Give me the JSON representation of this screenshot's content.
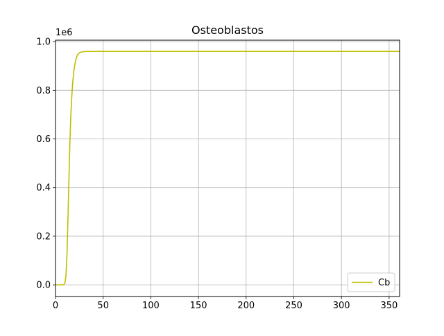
{
  "chart_data": {
    "type": "line",
    "title": "Osteoblastos",
    "xlabel": "",
    "ylabel": "",
    "y_offset_label": "1e6",
    "xlim": [
      0,
      361
    ],
    "ylim": [
      -0.048,
      1.006
    ],
    "x_ticks": [
      0,
      50,
      100,
      150,
      200,
      250,
      300,
      350
    ],
    "x_tick_labels": [
      "0",
      "50",
      "100",
      "150",
      "200",
      "250",
      "300",
      "350"
    ],
    "y_ticks": [
      0.0,
      0.2,
      0.4,
      0.6,
      0.8,
      1.0
    ],
    "y_tick_labels": [
      "0.0",
      "0.2",
      "0.4",
      "0.6",
      "0.8",
      "1.0"
    ],
    "grid": true,
    "legend_position": "lower-right",
    "series": [
      {
        "name": "Cb",
        "color": "#bfbf00",
        "x": [
          0,
          5,
          8,
          9,
          10,
          11,
          12,
          13,
          14,
          15,
          16,
          17,
          18,
          19,
          20,
          21,
          22,
          23,
          24,
          25,
          26,
          28,
          30,
          33,
          36,
          40,
          50,
          100,
          150,
          200,
          250,
          300,
          361
        ],
        "y": [
          0.0,
          0.0,
          0.0,
          0.002,
          0.01,
          0.04,
          0.12,
          0.26,
          0.42,
          0.57,
          0.69,
          0.77,
          0.83,
          0.87,
          0.9,
          0.92,
          0.935,
          0.945,
          0.95,
          0.954,
          0.956,
          0.958,
          0.959,
          0.96,
          0.96,
          0.96,
          0.96,
          0.96,
          0.96,
          0.96,
          0.96,
          0.96,
          0.96
        ]
      }
    ]
  }
}
